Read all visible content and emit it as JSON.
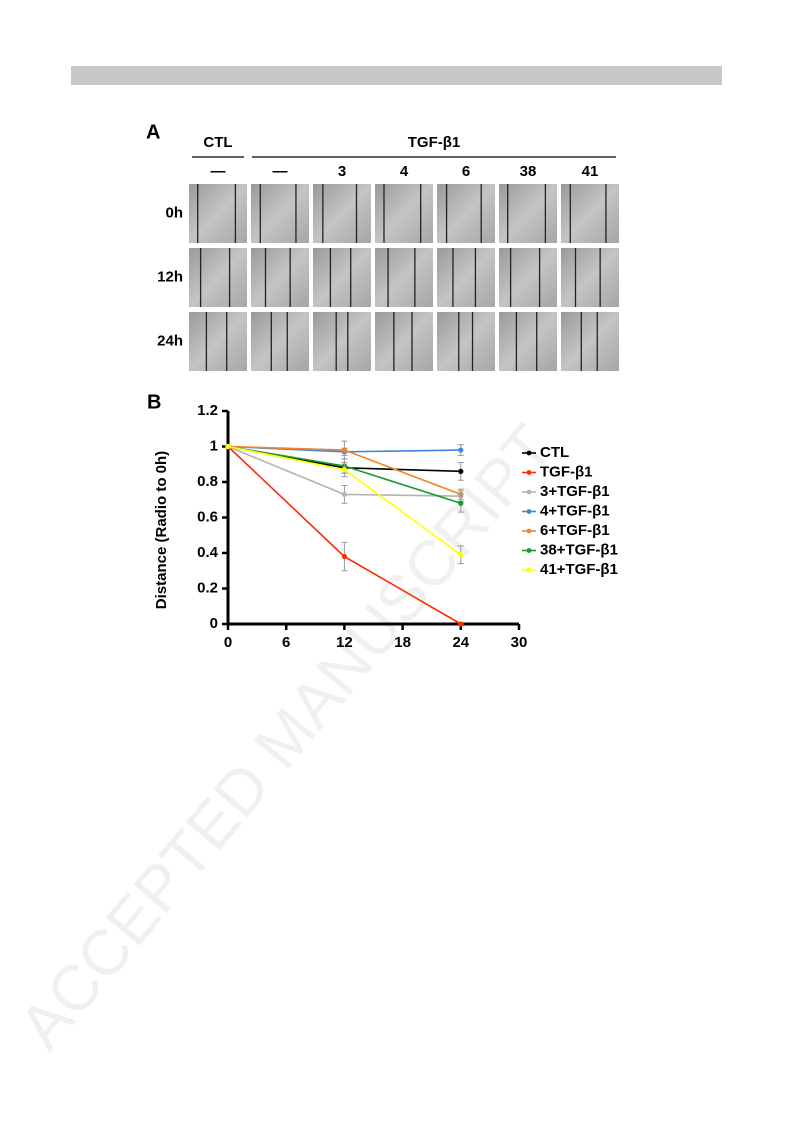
{
  "figure_a": {
    "panel_label": "A",
    "group_labels": [
      "CTL",
      "TGF-β1"
    ],
    "column_labels": [
      "—",
      "—",
      "3",
      "4",
      "6",
      "38",
      "41"
    ],
    "row_labels": [
      "0h",
      "12h",
      "24h"
    ]
  },
  "chart_data": {
    "type": "line",
    "panel_label": "B",
    "y_label": "Distance (Radio to 0h)",
    "x": [
      0,
      12,
      24
    ],
    "series": [
      {
        "name": "CTL",
        "color": "#000000",
        "values": [
          1,
          0.88,
          0.86
        ],
        "errors": [
          0,
          0.03,
          0.05
        ]
      },
      {
        "name": "TGF-β1",
        "color": "#ff2a00",
        "values": [
          1,
          0.38,
          0.0
        ],
        "errors": [
          0,
          0.08,
          0
        ]
      },
      {
        "name": "3+TGF-β1",
        "color": "#b4b4b4",
        "values": [
          1,
          0.73,
          0.72
        ],
        "errors": [
          0,
          0.05,
          0.03
        ]
      },
      {
        "name": "4+TGF-β1",
        "color": "#3a86e8",
        "values": [
          1,
          0.97,
          0.98
        ],
        "errors": [
          0,
          0.02,
          0.03
        ]
      },
      {
        "name": "6+TGF-β1",
        "color": "#f4841e",
        "values": [
          1,
          0.98,
          0.73
        ],
        "errors": [
          0,
          0.05,
          0.03
        ]
      },
      {
        "name": "38+TGF-β1",
        "color": "#169a2a",
        "values": [
          1,
          0.89,
          0.68
        ],
        "errors": [
          0,
          0.04,
          0.05
        ]
      },
      {
        "name": "41+TGF-β1",
        "color": "#ffff00",
        "values": [
          1,
          0.87,
          0.39
        ],
        "errors": [
          0,
          0.04,
          0.05
        ]
      }
    ],
    "xlim": [
      0,
      30
    ],
    "xticks": [
      0,
      6,
      12,
      18,
      24,
      30
    ],
    "ylim": [
      0,
      1.2
    ],
    "yticks": [
      0,
      0.2,
      0.4,
      0.6,
      0.8,
      1,
      1.2
    ],
    "legend": "right"
  },
  "watermark": "ACCEPTED MANUSCRIPT"
}
